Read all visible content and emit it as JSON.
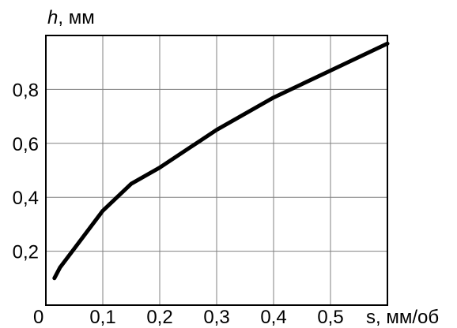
{
  "chart_data": {
    "type": "line",
    "title": "",
    "ylabel_symbol": "h",
    "ylabel_unit": ", мм",
    "xlabel_symbol": "s",
    "xlabel_unit": ", мм/об",
    "xlim": [
      0,
      0.6
    ],
    "ylim": [
      0,
      1.0
    ],
    "grid": true,
    "x_ticks": [
      {
        "value": 0,
        "label": "0"
      },
      {
        "value": 0.1,
        "label": "0,1"
      },
      {
        "value": 0.2,
        "label": "0,2"
      },
      {
        "value": 0.3,
        "label": "0,3"
      },
      {
        "value": 0.4,
        "label": "0,4"
      },
      {
        "value": 0.5,
        "label": "0,5"
      }
    ],
    "y_ticks": [
      {
        "value": 0.2,
        "label": "0,2"
      },
      {
        "value": 0.4,
        "label": "0,4"
      },
      {
        "value": 0.6,
        "label": "0,6"
      },
      {
        "value": 0.8,
        "label": "0,8"
      }
    ],
    "x_gridlines": [
      0.1,
      0.2,
      0.3,
      0.4,
      0.5
    ],
    "y_gridlines": [
      0.2,
      0.4,
      0.6,
      0.8
    ],
    "series": [
      {
        "x": [
          0.015,
          0.025,
          0.05,
          0.075,
          0.1,
          0.125,
          0.15,
          0.175,
          0.2,
          0.25,
          0.3,
          0.35,
          0.4,
          0.45,
          0.5,
          0.55,
          0.6
        ],
        "y": [
          0.1,
          0.14,
          0.21,
          0.28,
          0.35,
          0.4,
          0.45,
          0.48,
          0.51,
          0.58,
          0.65,
          0.71,
          0.77,
          0.82,
          0.87,
          0.92,
          0.97
        ]
      }
    ],
    "line_color": "#000000",
    "grid_color": "#808080"
  }
}
